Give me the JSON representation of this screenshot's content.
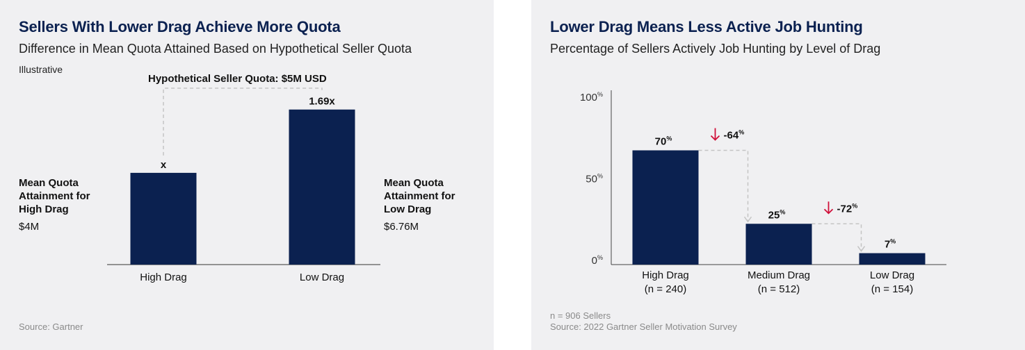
{
  "left_panel": {
    "title": "Sellers With Lower Drag Achieve More Quota",
    "subtitle": "Difference in Mean Quota Attained Based on Hypothetical Seller Quota",
    "note": "Illustrative",
    "bracket_label": "Hypothetical Seller Quota: $5M USD",
    "left_annotation": {
      "line1": "Mean Quota",
      "line2": "Attainment for",
      "line3": "High Drag",
      "value": "$4M"
    },
    "right_annotation": {
      "line1": "Mean Quota",
      "line2": "Attainment for",
      "line3": "Low Drag",
      "value": "$6.76M"
    },
    "source": "Source: Gartner"
  },
  "right_panel": {
    "title": "Lower Drag Means Less Active Job Hunting",
    "subtitle": "Percentage of Sellers Actively Job Hunting by Level of Drag",
    "n_note": "n = 906 Sellers",
    "source": "Source: 2022 Gartner Seller Motivation Survey"
  },
  "colors": {
    "bar": "#0b2150",
    "arrow": "#d0103a",
    "dashed": "#c4c4c4",
    "title": "#0b2150"
  },
  "chart_data": [
    {
      "type": "bar",
      "categories": [
        "High Drag",
        "Low Drag"
      ],
      "values": [
        1,
        1.69
      ],
      "data_labels": [
        "x",
        "1.69x"
      ],
      "ylim": [
        0,
        1.9
      ],
      "grid": false,
      "title": "Sellers With Lower Drag Achieve More Quota",
      "subtitle": "Difference in Mean Quota Attained Based on Hypothetical Seller Quota"
    },
    {
      "type": "bar",
      "categories": [
        [
          "High Drag",
          "(n = 240)"
        ],
        [
          "Medium Drag",
          "(n = 512)"
        ],
        [
          "Low Drag",
          "(n = 154)"
        ]
      ],
      "values": [
        70,
        25,
        7
      ],
      "data_labels": [
        "70",
        "25",
        "7"
      ],
      "unit": "%",
      "yticks": [
        "0",
        "50",
        "100"
      ],
      "ylim": [
        0,
        100
      ],
      "grid": false,
      "changes": [
        {
          "from": 0,
          "to": 1,
          "label": "-64"
        },
        {
          "from": 1,
          "to": 2,
          "label": "-72"
        }
      ],
      "title": "Lower Drag Means Less Active Job Hunting",
      "subtitle": "Percentage of Sellers Actively Job Hunting by Level of Drag"
    }
  ]
}
